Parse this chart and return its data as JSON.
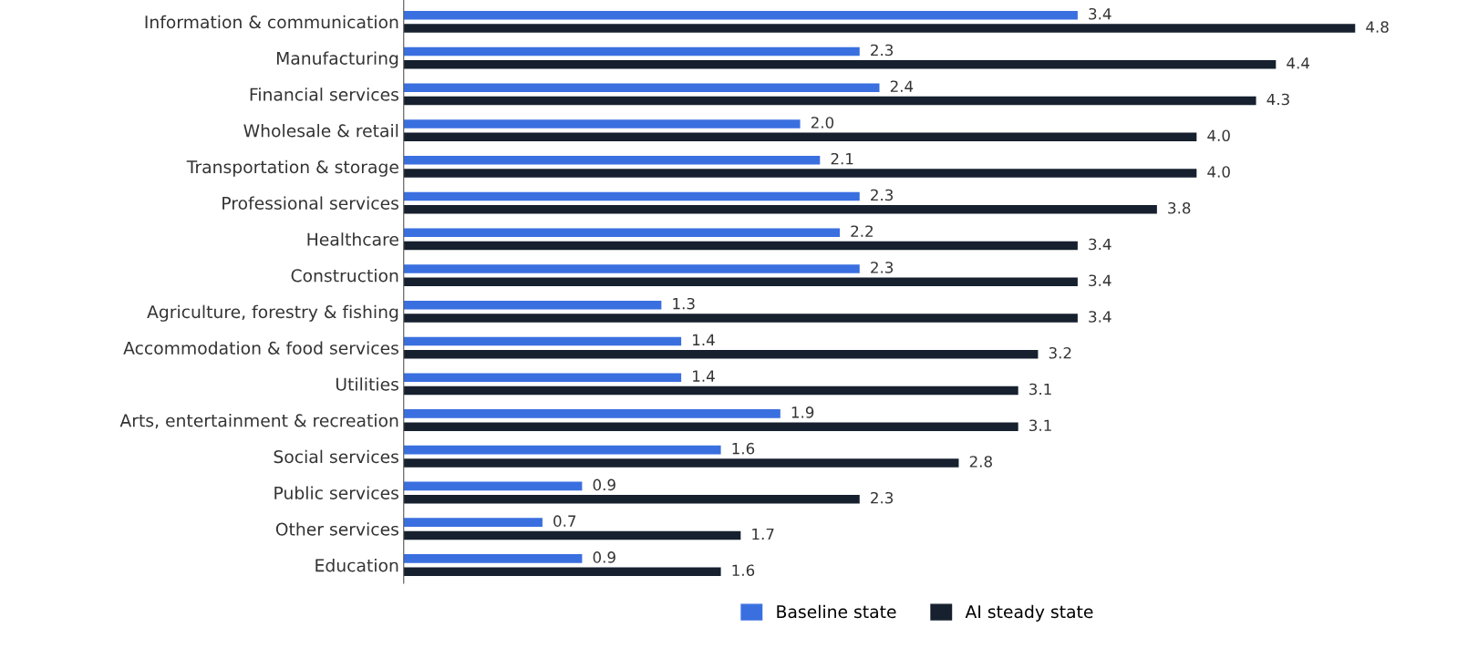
{
  "chart_data": {
    "type": "bar",
    "orientation": "horizontal",
    "categories": [
      "Information & communication",
      "Manufacturing",
      "Financial services",
      "Wholesale & retail",
      "Transportation & storage",
      "Professional services",
      "Healthcare",
      "Construction",
      "Agriculture, forestry & fishing",
      "Accommodation & food services",
      "Utilities",
      "Arts, entertainment & recreation",
      "Social services",
      "Public services",
      "Other services",
      "Education"
    ],
    "series": [
      {
        "name": "Baseline state",
        "color": "#3a6fe0",
        "values": [
          3.4,
          2.3,
          2.4,
          2.0,
          2.1,
          2.3,
          2.2,
          2.3,
          1.3,
          1.4,
          1.4,
          1.9,
          1.6,
          0.9,
          0.7,
          0.9
        ],
        "value_labels": [
          "3.4",
          "2.3",
          "2.4",
          "2.0",
          "2.1",
          "2.3",
          "2.2",
          "2.3",
          "1.3",
          "1.4",
          "1.4",
          "1.9",
          "1.6",
          "0.9",
          "0.7",
          "0.9"
        ]
      },
      {
        "name": "AI steady state",
        "color": "#16202e",
        "values": [
          4.8,
          4.4,
          4.3,
          4.0,
          4.0,
          3.8,
          3.4,
          3.4,
          3.4,
          3.2,
          3.1,
          3.1,
          2.8,
          2.3,
          1.7,
          1.6
        ],
        "value_labels": [
          "4.8",
          "4.4",
          "4.3",
          "4.0",
          "4.0",
          "3.8",
          "3.4",
          "3.4",
          "3.4",
          "3.2",
          "3.1",
          "3.1",
          "2.8",
          "2.3",
          "1.7",
          "1.6"
        ]
      }
    ],
    "legend": "bottom",
    "grid": false,
    "tick_labels": "y"
  }
}
